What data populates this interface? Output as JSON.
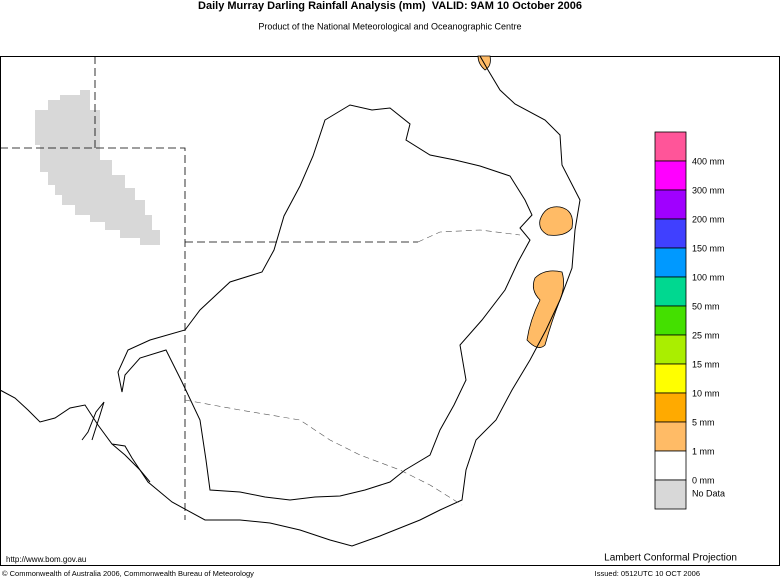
{
  "header": {
    "title": "Daily Murray Darling Rainfall Analysis (mm)  VALID: 9AM 10 October 2006",
    "subtitle": "Product of the National Meteorological and Oceanographic Centre"
  },
  "legend": {
    "colors": [
      "#ff5599",
      "#ff00ff",
      "#a000ff",
      "#4040ff",
      "#0099ff",
      "#00d890",
      "#44e000",
      "#aaee00",
      "#ffff00",
      "#ffaa00",
      "#ffbb66",
      "#ffffff",
      "#d8d8d8"
    ],
    "labels": [
      "400 mm",
      "300 mm",
      "200 mm",
      "150 mm",
      "100 mm",
      "50 mm",
      "25 mm",
      "15 mm",
      "10 mm",
      "5 mm",
      "1 mm",
      "0 mm"
    ],
    "no_data": "No Data"
  },
  "footer": {
    "url": "http://www.bom.gov.au",
    "projection": "Lambert Conformal Projection",
    "copyright": "© Commonwealth of Australia 2006, Commonwealth Bureau of Meteorology",
    "issued": "Issued: 0512UTC 10 OCT 2006"
  }
}
